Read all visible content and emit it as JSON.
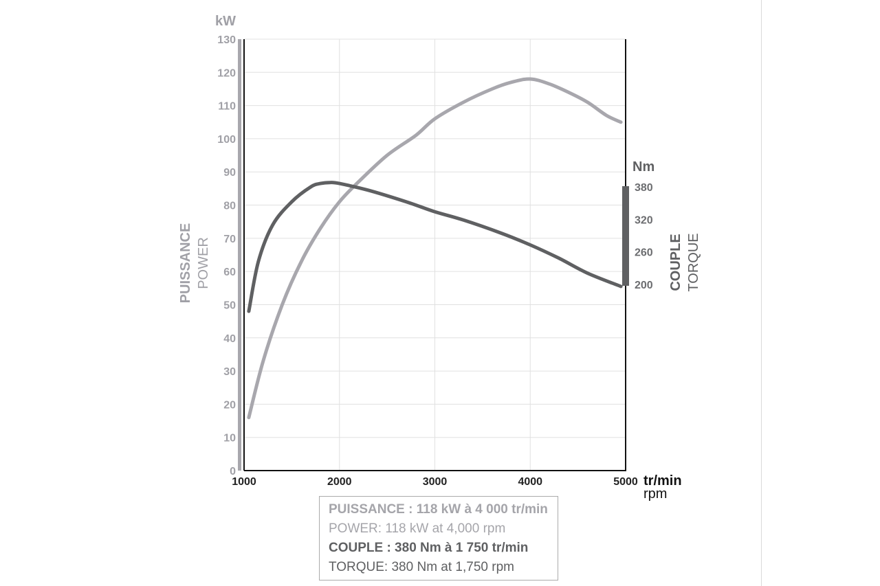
{
  "chart_data": {
    "type": "line",
    "title": "",
    "x": {
      "label_fr": "tr/min",
      "label_en": "rpm",
      "range": [
        1000,
        5000
      ],
      "ticks": [
        1000,
        2000,
        3000,
        4000,
        5000
      ]
    },
    "y_left": {
      "unit": "kW",
      "label_fr": "PUISSANCE",
      "label_en": "POWER",
      "range": [
        0,
        130
      ],
      "ticks": [
        0,
        10,
        20,
        30,
        40,
        50,
        60,
        70,
        80,
        90,
        100,
        110,
        120,
        130
      ]
    },
    "y_right": {
      "unit": "Nm",
      "label_fr": "COUPLE",
      "label_en": "TORQUE",
      "range": [
        200,
        380
      ],
      "ticks": [
        380,
        320,
        260,
        200
      ]
    },
    "grid": true,
    "series": [
      {
        "name": "PUISSANCE / POWER",
        "axis": "left",
        "color": "#a8a7ad",
        "points": [
          [
            1050,
            16
          ],
          [
            1200,
            33
          ],
          [
            1400,
            50
          ],
          [
            1600,
            63
          ],
          [
            1800,
            73
          ],
          [
            2000,
            81
          ],
          [
            2200,
            87
          ],
          [
            2500,
            95
          ],
          [
            2800,
            101
          ],
          [
            3000,
            106
          ],
          [
            3300,
            111
          ],
          [
            3600,
            115
          ],
          [
            3800,
            117
          ],
          [
            4000,
            118
          ],
          [
            4200,
            116.5
          ],
          [
            4400,
            114
          ],
          [
            4600,
            111
          ],
          [
            4800,
            107
          ],
          [
            4950,
            105
          ]
        ]
      },
      {
        "name": "COUPLE / TORQUE",
        "axis": "left",
        "color": "#5f6062",
        "points": [
          [
            1050,
            48
          ],
          [
            1150,
            63
          ],
          [
            1300,
            74
          ],
          [
            1500,
            81
          ],
          [
            1700,
            85.5
          ],
          [
            1800,
            86.5
          ],
          [
            1900,
            86.8
          ],
          [
            2000,
            86.5
          ],
          [
            2300,
            84.5
          ],
          [
            2700,
            81
          ],
          [
            3000,
            78
          ],
          [
            3300,
            75.5
          ],
          [
            3700,
            71.5
          ],
          [
            4000,
            68
          ],
          [
            4300,
            64
          ],
          [
            4600,
            59.5
          ],
          [
            4950,
            55.5
          ]
        ]
      }
    ]
  },
  "legend": {
    "power_fr": "PUISSANCE : 118 kW à 4 000 tr/min",
    "power_en": "POWER: 118 kW at 4,000 rpm",
    "torque_fr": "COUPLE : 380 Nm à 1 750 tr/min",
    "torque_en": "TORQUE: 380 Nm at 1,750 rpm"
  },
  "colors": {
    "power": "#a8a7ad",
    "torque": "#5f6062",
    "grid": "#e0e0e0",
    "axis": "#111111"
  }
}
